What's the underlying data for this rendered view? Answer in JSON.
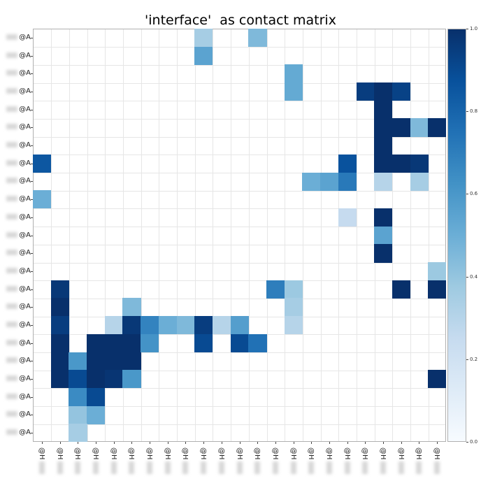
{
  "chart_data": {
    "type": "heatmap",
    "title": "'interface'  as contact matrix",
    "xlabel": "",
    "ylabel": "",
    "colormap": "Blues",
    "clim": [
      0.0,
      1.0
    ],
    "grid": true,
    "legend_position": "colorbar-right",
    "colorbar_ticks": [
      "0.0",
      "0.2",
      "0.4",
      "0.6",
      "0.8",
      "1.0"
    ],
    "row_labels": [
      "@A",
      "@A",
      "@A",
      "@A",
      "@A",
      "@A",
      "@A",
      "@A",
      "@A",
      "@A",
      "@A",
      "@A",
      "@A",
      "@A",
      "@A",
      "@A",
      "@A",
      "@A",
      "@A",
      "@A",
      "@A",
      "@A",
      "@A"
    ],
    "col_labels": [
      "@H",
      "@H",
      "@H",
      "@H",
      "@H",
      "@H",
      "@H",
      "@H",
      "@H",
      "@H",
      "@H",
      "@H",
      "@H",
      "@H",
      "@H",
      "@H",
      "@H",
      "@H",
      "@H",
      "@H",
      "@H",
      "@H",
      "@H"
    ],
    "n_rows": 23,
    "n_cols": 23,
    "cells": [
      {
        "r": 0,
        "c": 9,
        "v": 0.35
      },
      {
        "r": 0,
        "c": 12,
        "v": 0.45
      },
      {
        "r": 1,
        "c": 9,
        "v": 0.55
      },
      {
        "r": 2,
        "c": 14,
        "v": 0.52
      },
      {
        "r": 3,
        "c": 14,
        "v": 0.52
      },
      {
        "r": 3,
        "c": 18,
        "v": 0.95
      },
      {
        "r": 3,
        "c": 19,
        "v": 1.0
      },
      {
        "r": 3,
        "c": 20,
        "v": 0.93
      },
      {
        "r": 4,
        "c": 19,
        "v": 1.0
      },
      {
        "r": 5,
        "c": 19,
        "v": 1.0
      },
      {
        "r": 5,
        "c": 20,
        "v": 1.0
      },
      {
        "r": 5,
        "c": 21,
        "v": 0.45
      },
      {
        "r": 5,
        "c": 22,
        "v": 1.0
      },
      {
        "r": 6,
        "c": 19,
        "v": 1.0
      },
      {
        "r": 7,
        "c": 0,
        "v": 0.85
      },
      {
        "r": 7,
        "c": 17,
        "v": 0.87
      },
      {
        "r": 7,
        "c": 19,
        "v": 1.0
      },
      {
        "r": 7,
        "c": 20,
        "v": 1.0
      },
      {
        "r": 7,
        "c": 21,
        "v": 0.97
      },
      {
        "r": 8,
        "c": 15,
        "v": 0.5
      },
      {
        "r": 8,
        "c": 16,
        "v": 0.55
      },
      {
        "r": 8,
        "c": 17,
        "v": 0.72
      },
      {
        "r": 8,
        "c": 19,
        "v": 0.3
      },
      {
        "r": 8,
        "c": 21,
        "v": 0.35
      },
      {
        "r": 9,
        "c": 0,
        "v": 0.5
      },
      {
        "r": 10,
        "c": 17,
        "v": 0.25
      },
      {
        "r": 10,
        "c": 19,
        "v": 1.0
      },
      {
        "r": 11,
        "c": 19,
        "v": 0.55
      },
      {
        "r": 12,
        "c": 19,
        "v": 1.0
      },
      {
        "r": 13,
        "c": 22,
        "v": 0.38
      },
      {
        "r": 14,
        "c": 1,
        "v": 0.97
      },
      {
        "r": 14,
        "c": 13,
        "v": 0.7
      },
      {
        "r": 14,
        "c": 14,
        "v": 0.38
      },
      {
        "r": 14,
        "c": 20,
        "v": 1.0
      },
      {
        "r": 14,
        "c": 22,
        "v": 1.0
      },
      {
        "r": 15,
        "c": 1,
        "v": 1.0
      },
      {
        "r": 15,
        "c": 5,
        "v": 0.45
      },
      {
        "r": 15,
        "c": 14,
        "v": 0.35
      },
      {
        "r": 16,
        "c": 1,
        "v": 0.95
      },
      {
        "r": 16,
        "c": 4,
        "v": 0.3
      },
      {
        "r": 16,
        "c": 5,
        "v": 0.97
      },
      {
        "r": 16,
        "c": 6,
        "v": 0.68
      },
      {
        "r": 16,
        "c": 7,
        "v": 0.5
      },
      {
        "r": 16,
        "c": 8,
        "v": 0.45
      },
      {
        "r": 16,
        "c": 9,
        "v": 0.95
      },
      {
        "r": 16,
        "c": 10,
        "v": 0.3
      },
      {
        "r": 16,
        "c": 11,
        "v": 0.57
      },
      {
        "r": 16,
        "c": 14,
        "v": 0.3
      },
      {
        "r": 17,
        "c": 1,
        "v": 1.0
      },
      {
        "r": 17,
        "c": 3,
        "v": 1.0
      },
      {
        "r": 17,
        "c": 4,
        "v": 1.0
      },
      {
        "r": 17,
        "c": 5,
        "v": 1.0
      },
      {
        "r": 17,
        "c": 6,
        "v": 0.62
      },
      {
        "r": 17,
        "c": 9,
        "v": 0.9
      },
      {
        "r": 17,
        "c": 11,
        "v": 0.9
      },
      {
        "r": 17,
        "c": 12,
        "v": 0.75
      },
      {
        "r": 18,
        "c": 1,
        "v": 1.0
      },
      {
        "r": 18,
        "c": 2,
        "v": 0.6
      },
      {
        "r": 18,
        "c": 3,
        "v": 1.0
      },
      {
        "r": 18,
        "c": 4,
        "v": 1.0
      },
      {
        "r": 18,
        "c": 5,
        "v": 1.0
      },
      {
        "r": 19,
        "c": 1,
        "v": 1.0
      },
      {
        "r": 19,
        "c": 2,
        "v": 0.9
      },
      {
        "r": 19,
        "c": 3,
        "v": 1.0
      },
      {
        "r": 19,
        "c": 4,
        "v": 0.98
      },
      {
        "r": 19,
        "c": 5,
        "v": 0.6
      },
      {
        "r": 19,
        "c": 22,
        "v": 1.0
      },
      {
        "r": 20,
        "c": 2,
        "v": 0.65
      },
      {
        "r": 20,
        "c": 3,
        "v": 0.9
      },
      {
        "r": 21,
        "c": 2,
        "v": 0.4
      },
      {
        "r": 21,
        "c": 3,
        "v": 0.5
      },
      {
        "r": 22,
        "c": 2,
        "v": 0.35
      }
    ]
  }
}
